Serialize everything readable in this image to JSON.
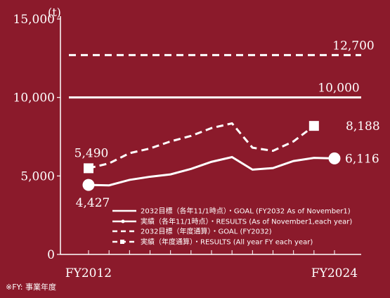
{
  "chart_data": {
    "type": "line",
    "unit_label": "(t)",
    "y_ticks": [
      "15,000",
      "10,000",
      "5,000",
      "0"
    ],
    "ylim": [
      0,
      15000
    ],
    "x_start_label": "FY2012",
    "x_end_label": "FY2024",
    "x_range": [
      2012,
      2024
    ],
    "footnote": "※FY: 事業年度",
    "series": [
      {
        "name": "2032目標（各年11/1時点）・GOAL (FY2032 As of November1)",
        "style": "solid",
        "x": [
          2012,
          2024
        ],
        "values": [
          10000,
          10000
        ],
        "labels": [
          {
            "x": 2024,
            "text": "10,000"
          }
        ]
      },
      {
        "name": "実績（各年11/1時点）・RESULTS (As of November1,each year)",
        "style": "solid-circle",
        "x": [
          2012,
          2013,
          2014,
          2015,
          2016,
          2017,
          2018,
          2019,
          2020,
          2021,
          2022,
          2023,
          2024
        ],
        "values": [
          4427,
          4400,
          4750,
          4950,
          5100,
          5450,
          5900,
          6200,
          5400,
          5500,
          5950,
          6150,
          6116
        ],
        "labels": [
          {
            "x": 2012,
            "text": "4,427"
          },
          {
            "x": 2024,
            "text": "6,116"
          }
        ]
      },
      {
        "name": "2032目標（年度通算）・GOAL (FY2032)",
        "style": "dashed",
        "x": [
          2012,
          2024
        ],
        "values": [
          12700,
          12700
        ],
        "labels": [
          {
            "x": 2024,
            "text": "12,700"
          }
        ]
      },
      {
        "name": "実績（年度通算）・RESULTS (All year FY each year)",
        "style": "dashed-square",
        "x": [
          2012,
          2013,
          2014,
          2015,
          2016,
          2017,
          2018,
          2019,
          2020,
          2021,
          2022,
          2023
        ],
        "values": [
          5490,
          5800,
          6450,
          6750,
          7200,
          7550,
          8050,
          8350,
          6800,
          6600,
          7200,
          8188
        ],
        "labels": [
          {
            "x": 2012,
            "text": "5,490"
          },
          {
            "x": 2023,
            "text": "8,188"
          }
        ]
      }
    ]
  },
  "colors": {
    "background": "#8b1a2b",
    "foreground": "#ffffff"
  }
}
